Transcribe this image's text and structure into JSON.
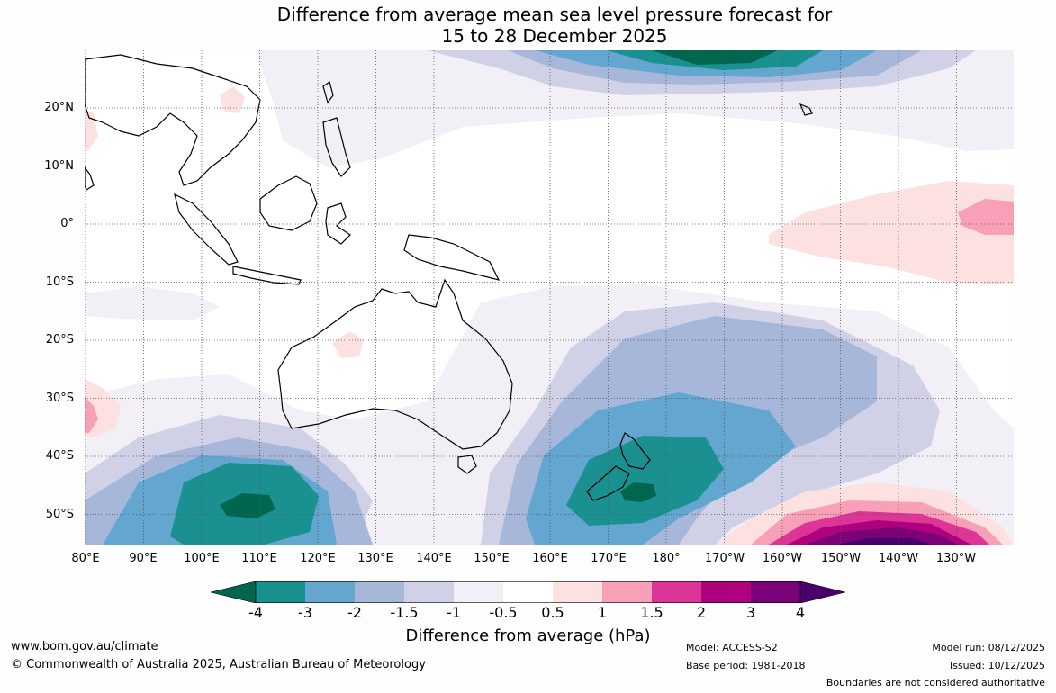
{
  "title_line1": "Difference from average mean sea level pressure forecast for",
  "title_line2": "15 to 28 December 2025",
  "lat_labels": [
    "20°N",
    "10°N",
    "0°",
    "10°S",
    "20°S",
    "30°S",
    "40°S",
    "50°S"
  ],
  "lon_labels": [
    "80°E",
    "90°E",
    "100°E",
    "110°E",
    "120°E",
    "130°E",
    "140°E",
    "150°E",
    "160°E",
    "170°E",
    "180°",
    "170°W",
    "160°W",
    "150°W",
    "140°W",
    "130°W"
  ],
  "colorbar": {
    "ticks": [
      "-4",
      "-3",
      "-2",
      "-1.5",
      "-1",
      "-0.5",
      "0.5",
      "1",
      "1.5",
      "2",
      "3",
      "4"
    ],
    "colors": [
      "#00664f",
      "#1a9090",
      "#63a6cf",
      "#a6b7da",
      "#d0d1e6",
      "#f2eff6",
      "#ffffff",
      "#fde0e0",
      "#f8a0b7",
      "#dd3497",
      "#ae017e",
      "#7a0177",
      "#49006a"
    ],
    "title": "Difference from average (hPa)"
  },
  "footer": {
    "website": "www.bom.gov.au/climate",
    "copyright": "© Commonwealth of Australia 2025, Australian Bureau of Meteorology",
    "model": "Model: ACCESS-S2",
    "base_period": "Base period: 1981-2018",
    "model_run": "Model run: 08/12/2025",
    "issued": "Issued: 10/12/2025",
    "boundaries": "Boundaries are not considered authoritative"
  }
}
